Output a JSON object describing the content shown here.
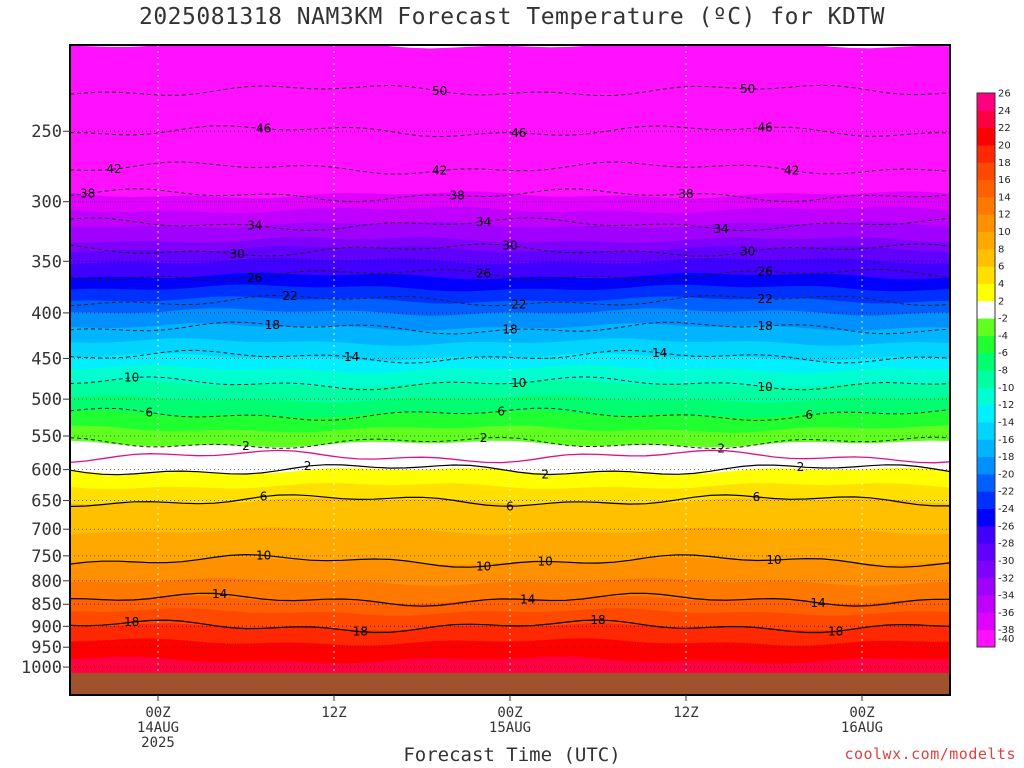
{
  "chart_data": {
    "type": "heatmap",
    "title": "2025081318 NAM3KM Forecast Temperature (ºC) for KDTW",
    "xlabel": "Forecast Time (UTC)",
    "ylabel": "",
    "credit": "coolwx.com/modelts",
    "y_scale": "log",
    "y_inverted": true,
    "y_range": [
      1075,
      200
    ],
    "y_ticks": [
      250,
      300,
      350,
      400,
      450,
      500,
      550,
      600,
      650,
      700,
      750,
      800,
      850,
      900,
      950,
      1000
    ],
    "x_ticks": [
      {
        "line1": "00Z",
        "line2": "14AUG",
        "line3": "2025"
      },
      {
        "line1": "12Z",
        "line2": "",
        "line3": ""
      },
      {
        "line1": "00Z",
        "line2": "15AUG",
        "line3": ""
      },
      {
        "line1": "12Z",
        "line2": "",
        "line3": ""
      },
      {
        "line1": "00Z",
        "line2": "16AUG",
        "line3": ""
      }
    ],
    "colorbar": {
      "levels": [
        -40,
        -38,
        -36,
        -34,
        -32,
        -30,
        -28,
        -26,
        -24,
        -22,
        -20,
        -18,
        -16,
        -14,
        -12,
        -10,
        -8,
        -6,
        -4,
        -2,
        2,
        4,
        6,
        8,
        10,
        12,
        14,
        16,
        18,
        20,
        22,
        24,
        26
      ],
      "labels": [
        "-40",
        "-38",
        "-36",
        "-34",
        "-32",
        "-30",
        "-28",
        "-26",
        "-24",
        "-22",
        "-20",
        "-18",
        "-16",
        "-14",
        "-12",
        "-10",
        "-8",
        "-6",
        "-4",
        "-2",
        "2",
        "4",
        "6",
        "8",
        "10",
        "12",
        "14",
        "16",
        "18",
        "20",
        "22",
        "24",
        "26"
      ],
      "colors": [
        "#ff10ff",
        "#e000ff",
        "#c000ff",
        "#a000ff",
        "#8000ff",
        "#6000ff",
        "#4000ff",
        "#0000ff",
        "#0030ff",
        "#0060ff",
        "#0090ff",
        "#00b4ff",
        "#00d4ff",
        "#00f0ff",
        "#00ffd0",
        "#00ffa0",
        "#00ff70",
        "#20ff30",
        "#60ff20",
        "#ffffff",
        "#ffff00",
        "#ffe000",
        "#ffc000",
        "#ffa800",
        "#ff9000",
        "#ff7800",
        "#ff6000",
        "#ff4800",
        "#ff2800",
        "#ff0000",
        "#ff0040",
        "#ff0080"
      ]
    },
    "isotherm_profile": [
      {
        "p": 200,
        "t": -56
      },
      {
        "p": 225,
        "t": -50
      },
      {
        "p": 250,
        "t": -46
      },
      {
        "p": 275,
        "t": -42
      },
      {
        "p": 300,
        "t": -37
      },
      {
        "p": 330,
        "t": -32
      },
      {
        "p": 350,
        "t": -28
      },
      {
        "p": 375,
        "t": -24
      },
      {
        "p": 400,
        "t": -20
      },
      {
        "p": 440,
        "t": -15
      },
      {
        "p": 480,
        "t": -10
      },
      {
        "p": 520,
        "t": -6
      },
      {
        "p": 560,
        "t": -2
      },
      {
        "p": 600,
        "t": 2
      },
      {
        "p": 650,
        "t": 6
      },
      {
        "p": 760,
        "t": 10
      },
      {
        "p": 840,
        "t": 14
      },
      {
        "p": 900,
        "t": 18
      },
      {
        "p": 960,
        "t": 21
      },
      {
        "p": 1000,
        "t": 23
      }
    ],
    "contour_labels": [
      {
        "text": "50",
        "x": [
          0.42,
          0.77
        ]
      },
      {
        "text": "46",
        "x": [
          0.22,
          0.51,
          0.79
        ]
      },
      {
        "text": "42",
        "x": [
          0.05,
          0.42,
          0.82
        ]
      },
      {
        "text": "38",
        "x": [
          0.02,
          0.44,
          0.7
        ]
      },
      {
        "text": "34",
        "x": [
          0.21,
          0.47,
          0.74
        ]
      },
      {
        "text": "30",
        "x": [
          0.19,
          0.5,
          0.77
        ]
      },
      {
        "text": "26",
        "x": [
          0.21,
          0.47,
          0.79
        ]
      },
      {
        "text": "22",
        "x": [
          0.25,
          0.51,
          0.79
        ]
      },
      {
        "text": "18",
        "x": [
          0.23,
          0.5,
          0.79
        ]
      },
      {
        "text": "14",
        "x": [
          0.32,
          0.67
        ]
      },
      {
        "text": "10",
        "x": [
          0.07,
          0.51,
          0.79
        ]
      },
      {
        "text": "6",
        "x": [
          0.09,
          0.49,
          0.84
        ]
      },
      {
        "text": "2",
        "x": [
          0.2,
          0.47,
          0.74
        ]
      },
      {
        "text": "2",
        "x": [
          0.27,
          0.54,
          0.83
        ]
      },
      {
        "text": "6",
        "x": [
          0.22,
          0.5,
          0.78
        ]
      },
      {
        "text": "10",
        "x": [
          0.22,
          0.47,
          0.54,
          0.8
        ]
      },
      {
        "text": "14",
        "x": [
          0.17,
          0.52,
          0.85
        ]
      },
      {
        "text": "18",
        "x": [
          0.07,
          0.33,
          0.6,
          0.87
        ]
      }
    ],
    "ground_color": "#a0522d",
    "grid": true
  }
}
